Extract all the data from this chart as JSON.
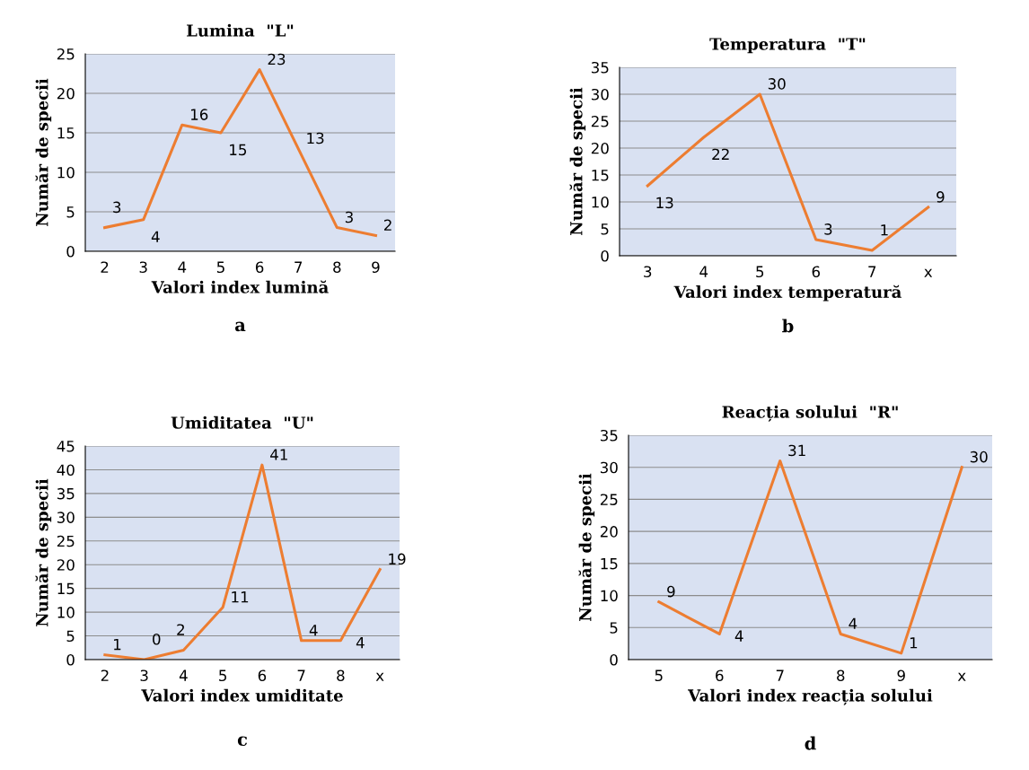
{
  "chart_data": [
    {
      "type": "line",
      "title": "Lumina  \"L\"",
      "xlabel": "Valori index lumină",
      "ylabel": "Număr de specii",
      "categories": [
        "2",
        "3",
        "4",
        "5",
        "6",
        "7",
        "8",
        "9"
      ],
      "values": [
        3,
        4,
        16,
        15,
        23,
        13,
        3,
        2
      ],
      "color": "#ed7d31",
      "ylim": [
        0,
        25
      ],
      "yticks": [
        0,
        5,
        10,
        15,
        20,
        25
      ],
      "grid": "y",
      "data_labels": true,
      "legend": false,
      "annotations": [
        "a"
      ]
    },
    {
      "type": "line",
      "title": "Temperatura  \"T\"",
      "xlabel": "Valori index temperatură",
      "ylabel": "Număr de specii",
      "categories": [
        "3",
        "4",
        "5",
        "6",
        "7",
        "x"
      ],
      "values": [
        13,
        22,
        30,
        3,
        1,
        9
      ],
      "color": "#ed7d31",
      "ylim": [
        0,
        35
      ],
      "yticks": [
        0,
        5,
        10,
        15,
        20,
        25,
        30,
        35
      ],
      "grid": "y",
      "data_labels": true,
      "legend": false,
      "annotations": [
        "b"
      ]
    },
    {
      "type": "line",
      "title": "Umiditatea  \"U\"",
      "xlabel": "Valori index umiditate",
      "ylabel": "Număr de specii",
      "categories": [
        "2",
        "3",
        "4",
        "5",
        "6",
        "7",
        "8",
        "x"
      ],
      "values": [
        1,
        0,
        2,
        11,
        41,
        4,
        4,
        19
      ],
      "color": "#ed7d31",
      "ylim": [
        0,
        45
      ],
      "yticks": [
        0,
        5,
        10,
        15,
        20,
        25,
        30,
        35,
        40,
        45
      ],
      "grid": "y",
      "data_labels": true,
      "legend": false,
      "annotations": [
        "c"
      ]
    },
    {
      "type": "line",
      "title": "Reacția solului  \"R\"",
      "xlabel": "Valori index reacția solului",
      "ylabel": "Număr de specii",
      "categories": [
        "5",
        "6",
        "7",
        "8",
        "9",
        "x"
      ],
      "values": [
        9,
        4,
        31,
        4,
        1,
        30
      ],
      "color": "#ed7d31",
      "ylim": [
        0,
        35
      ],
      "yticks": [
        0,
        5,
        10,
        15,
        20,
        25,
        30,
        35
      ],
      "grid": "y",
      "data_labels": true,
      "legend": false,
      "annotations": [
        "d"
      ]
    }
  ]
}
